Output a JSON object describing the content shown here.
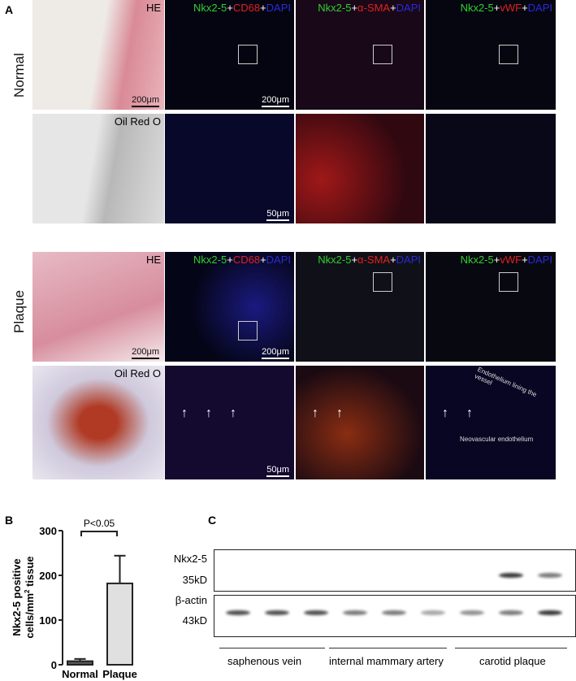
{
  "panel_a": {
    "label": "A",
    "rows": [
      {
        "label": "Normal"
      },
      {
        "label": "Plaque"
      }
    ],
    "titles": {
      "he": "HE",
      "oil": "Oil Red O",
      "stain_prefix": "Nkx2-5",
      "plus": "+",
      "dapi": "DAPI",
      "cd68": "CD68",
      "sma": "α-SMA",
      "vwf": "vWF"
    },
    "scale_200": "200μm",
    "scale_50": "50μm",
    "annotations": {
      "lining": "Endothelium lining the vessel",
      "neo": "Neovascular endothelium"
    }
  },
  "panel_b": {
    "label": "B",
    "significance": "P<0.05"
  },
  "chart_data": {
    "type": "bar",
    "categories": [
      "Normal",
      "Plaque"
    ],
    "values": [
      8,
      182
    ],
    "errors": [
      5,
      62
    ],
    "ylabel": "Nkx2-5 positive cells/mm² tissue",
    "ylabel_line1": "Nkx2-5 positive",
    "ylabel_line2": "cells/mm",
    "ylabel_sup": "2",
    "ylabel_tail": " tissue",
    "ylim": [
      0,
      300
    ],
    "yticks": [
      "0",
      "100",
      "200",
      "300"
    ],
    "colors": [
      "#555555",
      "#e0e0e0"
    ]
  },
  "panel_c": {
    "label": "C",
    "rows": [
      {
        "protein": "Nkx2-5",
        "size": "35kD"
      },
      {
        "protein": "β-actin",
        "size": "43kD"
      }
    ],
    "groups": [
      "saphenous vein",
      "internal mammary artery",
      "carotid plaque"
    ],
    "nkx_intensity": [
      0,
      0,
      0,
      0,
      0,
      0,
      0,
      0.9,
      0.6
    ],
    "actin_intensity": [
      0.8,
      0.8,
      0.8,
      0.6,
      0.6,
      0.4,
      0.5,
      0.6,
      0.9
    ]
  }
}
